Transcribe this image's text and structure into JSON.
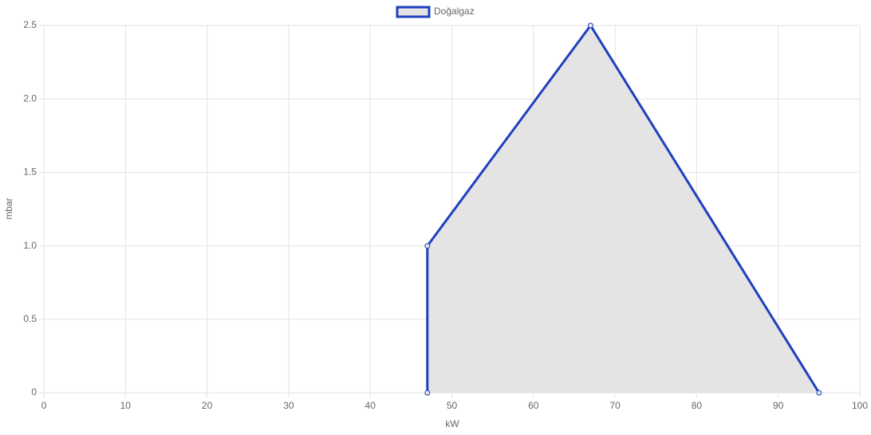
{
  "chart_data": {
    "type": "line",
    "x_label": "kW",
    "y_label": "mbar",
    "x": [
      47,
      47,
      67,
      95
    ],
    "series": [
      {
        "name": "Doğalgaz",
        "color": "#1f3fbf",
        "fill_color": "#e4e4e4",
        "values": [
          0,
          1,
          2.5,
          0
        ]
      }
    ],
    "xlim": [
      0,
      100
    ],
    "xticks": [
      0,
      10,
      20,
      30,
      40,
      50,
      60,
      70,
      80,
      90,
      100
    ],
    "ylim": [
      0,
      2.5
    ],
    "yticks": [
      0,
      0.5,
      {
        "value": 1,
        "label": "1.0"
      },
      1.5,
      {
        "value": 2,
        "label": "2.0"
      },
      2.5
    ],
    "grid": true,
    "fill": true,
    "legend": "top"
  }
}
